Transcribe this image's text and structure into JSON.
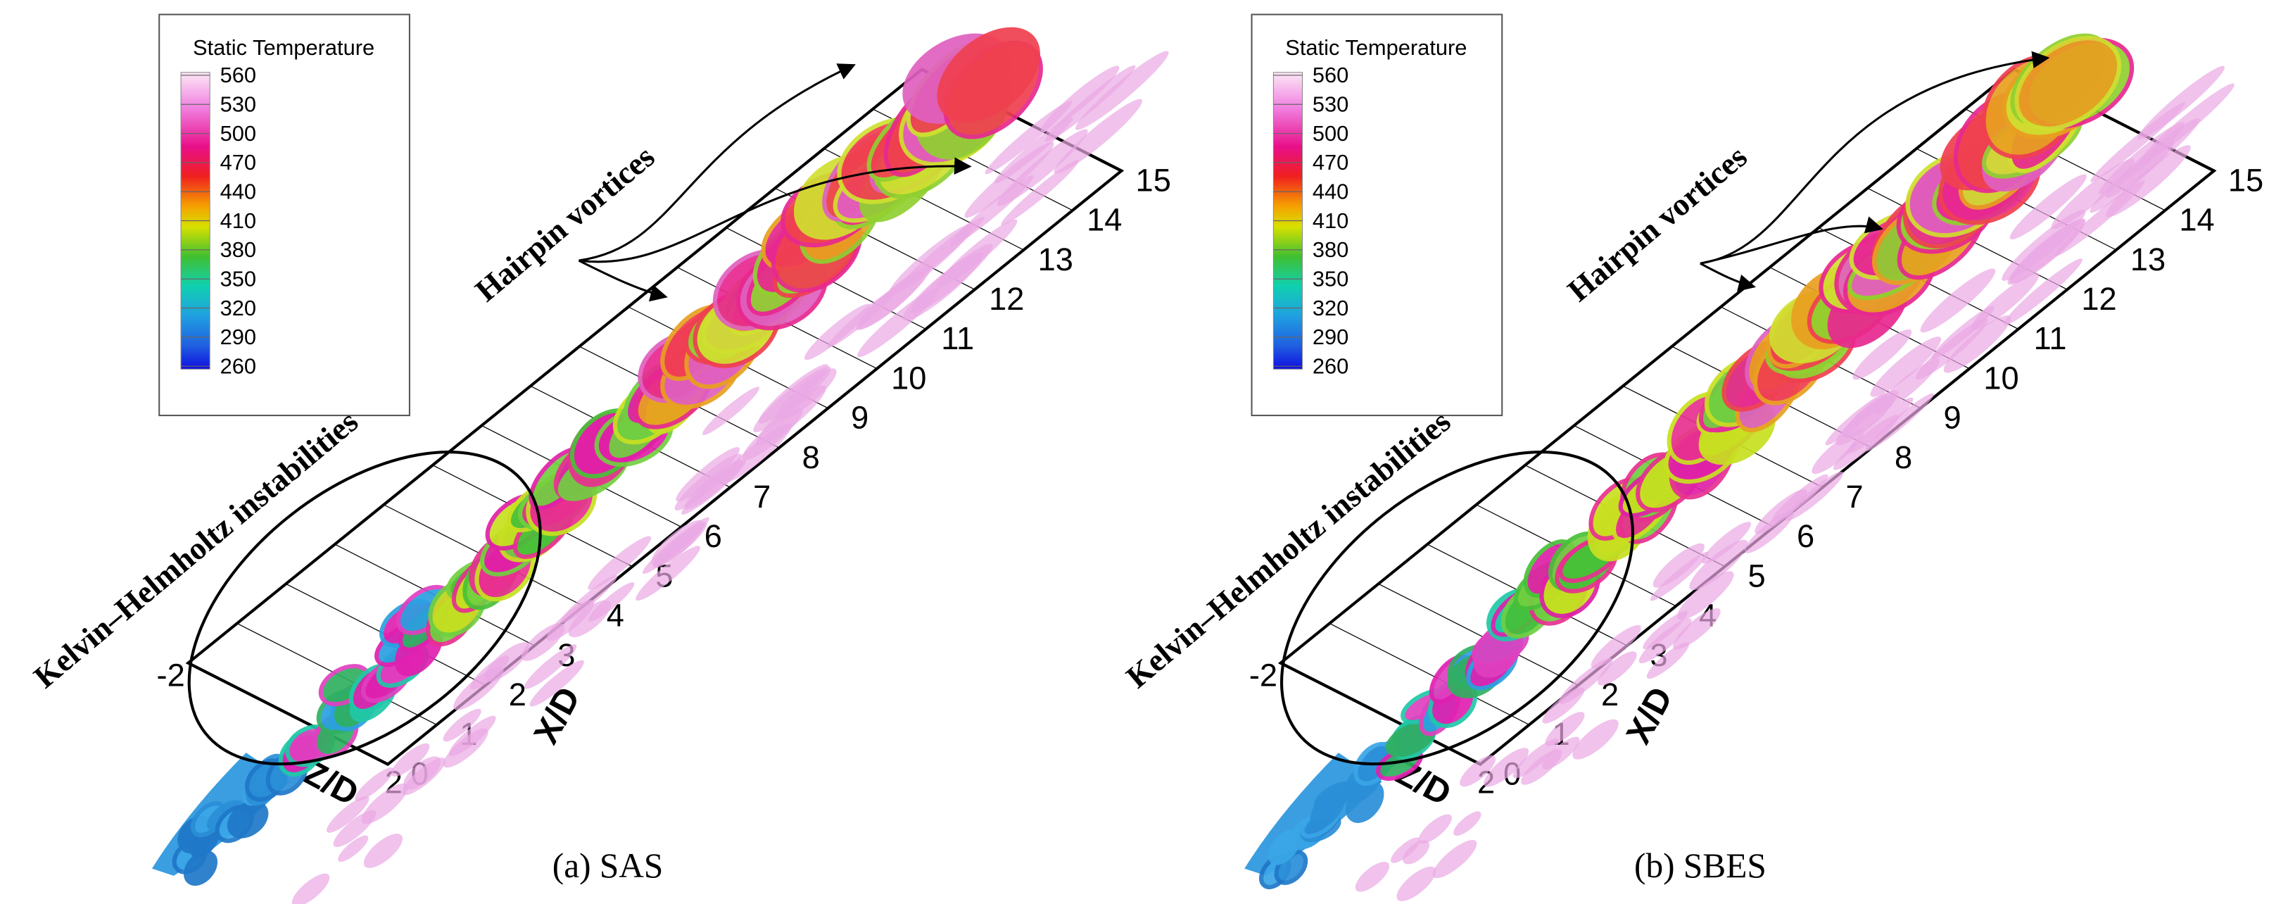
{
  "panels": [
    {
      "legend": {
        "title": "Static Temperature",
        "ticks": [
          560,
          530,
          500,
          470,
          440,
          410,
          380,
          350,
          320,
          290,
          260
        ]
      },
      "x_axis": {
        "label": "X/D",
        "ticks": [
          0,
          1,
          2,
          3,
          4,
          5,
          6,
          7,
          8,
          9,
          10,
          11,
          12,
          13,
          14,
          15
        ]
      },
      "z_axis": {
        "label": "Z/D",
        "ticks": [
          -2,
          2
        ]
      },
      "annotations": [
        "Hairpin vortices",
        "Kelvin–Helmholtz instabilities"
      ],
      "caption": "(a) SAS"
    },
    {
      "legend": {
        "title": "Static Temperature",
        "ticks": [
          560,
          530,
          500,
          470,
          440,
          410,
          380,
          350,
          320,
          290,
          260
        ]
      },
      "x_axis": {
        "label": "X/D",
        "ticks": [
          0,
          1,
          2,
          3,
          4,
          5,
          6,
          7,
          8,
          9,
          10,
          11,
          12,
          13,
          14,
          15
        ]
      },
      "z_axis": {
        "label": "Z/D",
        "ticks": [
          -2,
          2
        ]
      },
      "annotations": [
        "Hairpin vortices",
        "Kelvin–Helmholtz instabilities"
      ],
      "caption": "(b) SBES"
    }
  ]
}
